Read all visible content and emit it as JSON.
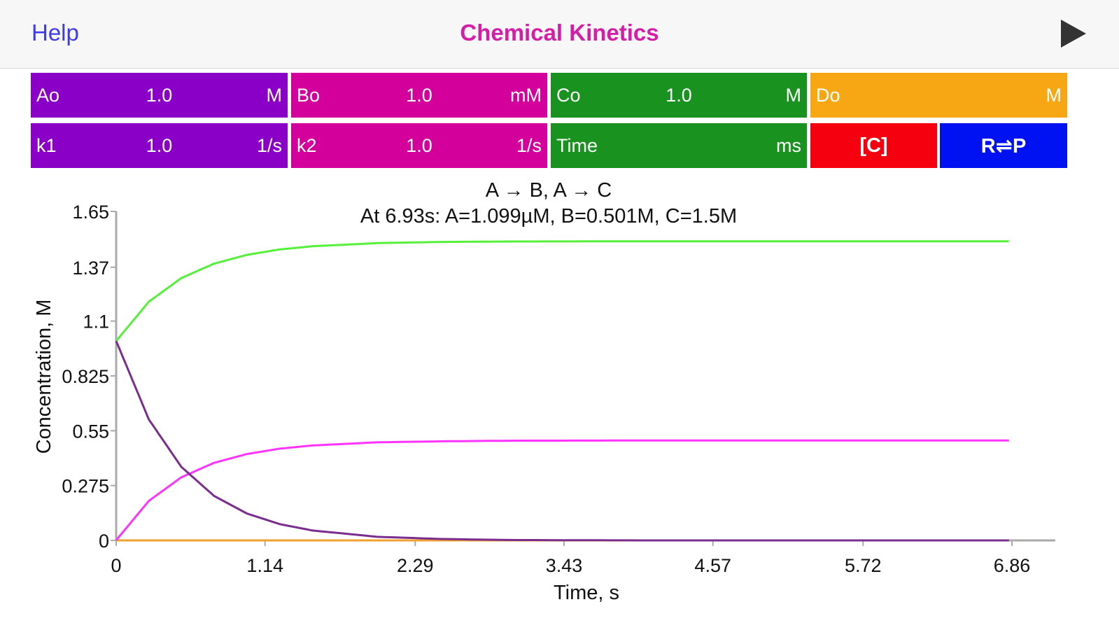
{
  "nav": {
    "help_label": "Help",
    "title": "Chemical Kinetics",
    "play_icon": "play-icon"
  },
  "colors": {
    "A": "#8b00c6",
    "B": "#d4009b",
    "C": "#1a921f",
    "D": "#f6a713",
    "red": "#f5000f",
    "blue": "#0012f2",
    "curveA": "#7a2d8e",
    "curveB": "#ff33ff",
    "curveC": "#55f03a",
    "curveD": "#f0a030"
  },
  "inputs": {
    "Ao": {
      "label": "Ao",
      "value": "1.0",
      "unit": "M"
    },
    "Bo": {
      "label": "Bo",
      "value": "1.0",
      "unit": "mM"
    },
    "Co": {
      "label": "Co",
      "value": "1.0",
      "unit": "M"
    },
    "Do": {
      "label": "Do",
      "value": "",
      "unit": "M"
    },
    "k1": {
      "label": "k1",
      "value": "1.0",
      "unit": "1/s"
    },
    "k2": {
      "label": "k2",
      "value": "1.0",
      "unit": "1/s"
    },
    "time": {
      "label": "Time",
      "value": "",
      "unit": "ms"
    }
  },
  "buttons": {
    "conc": "[C]",
    "rp": "R⇌P"
  },
  "chart_data": {
    "type": "line",
    "title": "A → B, A → C",
    "subtitle": "At 6.93s: A=1.099µM, B=0.501M, C=1.5M",
    "xlabel": "Time, s",
    "ylabel": "Concentration, M",
    "xlim": [
      0,
      6.93
    ],
    "ylim": [
      0,
      1.65
    ],
    "xticks": [
      "0",
      "1.14",
      "2.29",
      "3.43",
      "4.57",
      "5.72",
      "6.86"
    ],
    "xtick_values": [
      0,
      1.14,
      2.29,
      3.43,
      4.57,
      5.72,
      6.86
    ],
    "yticks": [
      "0",
      "0.275",
      "0.55",
      "0.825",
      "1.1",
      "1.37",
      "1.65"
    ],
    "ytick_values": [
      0,
      0.275,
      0.55,
      0.825,
      1.1,
      1.37,
      1.65
    ],
    "series": [
      {
        "key": "A",
        "x": [
          0,
          0.25,
          0.5,
          0.75,
          1.0,
          1.25,
          1.5,
          2.0,
          2.5,
          3.0,
          4.0,
          5.0,
          6.0,
          6.93
        ],
        "values": [
          1.0,
          0.607,
          0.368,
          0.223,
          0.135,
          0.082,
          0.05,
          0.018,
          0.007,
          0.002,
          0.0,
          0.0,
          0.0,
          0.0
        ]
      },
      {
        "key": "B",
        "x": [
          0,
          0.25,
          0.5,
          0.75,
          1.0,
          1.25,
          1.5,
          2.0,
          2.5,
          3.0,
          4.0,
          5.0,
          6.0,
          6.93
        ],
        "values": [
          0.001,
          0.198,
          0.317,
          0.389,
          0.433,
          0.46,
          0.476,
          0.492,
          0.497,
          0.5,
          0.501,
          0.501,
          0.501,
          0.501
        ]
      },
      {
        "key": "C",
        "x": [
          0,
          0.25,
          0.5,
          0.75,
          1.0,
          1.25,
          1.5,
          2.0,
          2.5,
          3.0,
          4.0,
          5.0,
          6.0,
          6.93
        ],
        "values": [
          1.0,
          1.197,
          1.316,
          1.388,
          1.432,
          1.459,
          1.475,
          1.491,
          1.497,
          1.499,
          1.5,
          1.5,
          1.5,
          1.5
        ]
      },
      {
        "key": "D",
        "x": [
          0,
          6.93
        ],
        "values": [
          0,
          0
        ]
      }
    ]
  }
}
